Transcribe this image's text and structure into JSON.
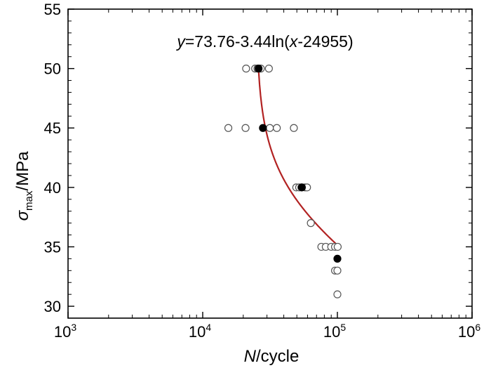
{
  "chart_data": {
    "type": "scatter",
    "title": "",
    "equation": {
      "y": "y",
      "part1": "=73.76-3.44ln(",
      "x": "x",
      "part2": "-24955)"
    },
    "xlabel": {
      "var": "N",
      "unit": "/cycle"
    },
    "ylabel": {
      "var": "σ",
      "sub": "max",
      "unit": "/MPa"
    },
    "x_scale": "log",
    "xlim": [
      1000,
      1000000
    ],
    "ylim": [
      29,
      55
    ],
    "x_ticks": [
      {
        "value": 1000,
        "base": "10",
        "exp": "3"
      },
      {
        "value": 10000,
        "base": "10",
        "exp": "4"
      },
      {
        "value": 100000,
        "base": "10",
        "exp": "5"
      },
      {
        "value": 1000000,
        "base": "10",
        "exp": "6"
      }
    ],
    "y_ticks": [
      30,
      35,
      40,
      45,
      50,
      55
    ],
    "grid": false,
    "series": [
      {
        "marker": "open-circle",
        "points": [
          [
            21000,
            50
          ],
          [
            24500,
            50
          ],
          [
            25500,
            50
          ],
          [
            27000,
            50
          ],
          [
            31000,
            50
          ],
          [
            15500,
            45
          ],
          [
            20800,
            45
          ],
          [
            31500,
            45
          ],
          [
            35500,
            45
          ],
          [
            47500,
            45
          ],
          [
            49500,
            40
          ],
          [
            52000,
            40
          ],
          [
            54000,
            40
          ],
          [
            57500,
            40
          ],
          [
            59500,
            40
          ],
          [
            63500,
            37
          ],
          [
            76000,
            35
          ],
          [
            82000,
            35
          ],
          [
            90000,
            35
          ],
          [
            96000,
            35
          ],
          [
            100500,
            35
          ],
          [
            96000,
            33
          ],
          [
            100000,
            33
          ],
          [
            100000,
            31
          ]
        ]
      },
      {
        "marker": "filled-circle",
        "points": [
          [
            26000,
            50
          ],
          [
            28000,
            45
          ],
          [
            54500,
            40
          ],
          [
            100000,
            34
          ]
        ]
      }
    ],
    "fit_curve": {
      "color": "#b22222",
      "a": 73.76,
      "b": 3.44,
      "c": 24955,
      "x_range": [
        26000,
        99000
      ]
    }
  }
}
